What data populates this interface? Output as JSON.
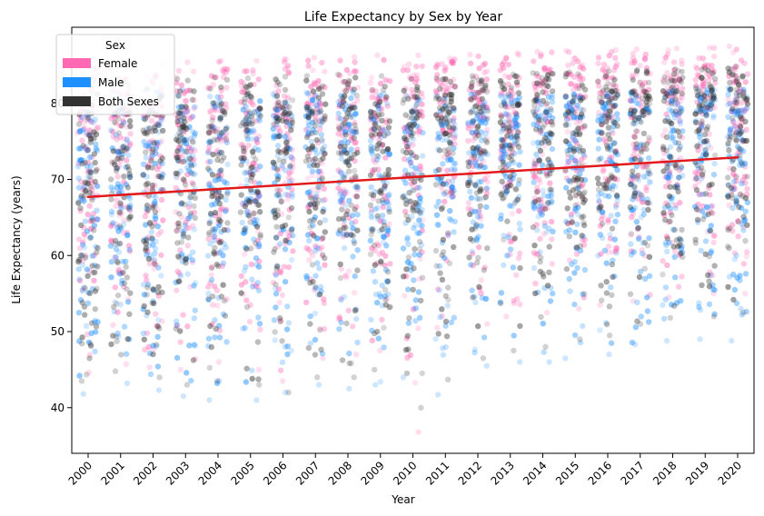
{
  "chart_data": {
    "type": "scatter",
    "title": "Life Expectancy by Sex by Year",
    "xlabel": "Year",
    "ylabel": "Life Expectancy (years)",
    "x": [
      2000,
      2001,
      2002,
      2003,
      2004,
      2005,
      2006,
      2007,
      2008,
      2009,
      2010,
      2011,
      2012,
      2013,
      2014,
      2015,
      2016,
      2017,
      2018,
      2019,
      2020
    ],
    "x_tick_labels": [
      "2000",
      "2001",
      "2002",
      "2003",
      "2004",
      "2005",
      "2006",
      "2007",
      "2008",
      "2009",
      "2010",
      "2011",
      "2012",
      "2013",
      "2014",
      "2015",
      "2016",
      "2017",
      "2018",
      "2019",
      "2020"
    ],
    "y_ticks": [
      40,
      50,
      60,
      70,
      80
    ],
    "y_tick_labels": [
      "40",
      "50",
      "60",
      "70",
      "80"
    ],
    "ylim": [
      34,
      90
    ],
    "grid": false,
    "legend": {
      "title": "Sex",
      "position": "top-left",
      "entries": [
        "Female",
        "Male",
        "Both Sexes"
      ]
    },
    "series": [
      {
        "name": "Female",
        "color": "#ff69b4",
        "min": [
          44.6,
          45.7,
          45.3,
          45.0,
          46.0,
          45.0,
          43.5,
          46.5,
          47.0,
          47.5,
          36.8,
          50.5,
          51.0,
          52.0,
          52.5,
          53.0,
          53.5,
          54.0,
          54.5,
          55.0,
          55.0
        ],
        "q1": [
          63.5,
          64.0,
          64.3,
          64.8,
          65.2,
          65.6,
          66.0,
          66.5,
          66.9,
          67.4,
          67.9,
          68.3,
          68.7,
          69.1,
          69.5,
          69.8,
          70.1,
          70.4,
          70.6,
          70.9,
          70.5
        ],
        "median": [
          72.1,
          72.5,
          72.8,
          73.2,
          73.6,
          74.0,
          74.4,
          74.8,
          75.2,
          75.6,
          76.0,
          76.4,
          76.7,
          77.1,
          77.4,
          77.7,
          78.0,
          78.2,
          78.4,
          78.6,
          78.0
        ],
        "q3": [
          77.8,
          78.1,
          78.4,
          78.7,
          79.0,
          79.3,
          79.6,
          79.9,
          80.2,
          80.5,
          80.8,
          81.1,
          81.4,
          81.7,
          82.0,
          82.3,
          82.5,
          82.7,
          82.9,
          83.1,
          82.8
        ],
        "max": [
          84.6,
          84.9,
          85.1,
          85.4,
          85.6,
          85.6,
          85.8,
          86.0,
          86.1,
          86.3,
          86.3,
          85.9,
          86.4,
          86.6,
          86.8,
          86.9,
          87.0,
          87.1,
          87.2,
          87.3,
          87.5
        ]
      },
      {
        "name": "Male",
        "color": "#1e90ff",
        "min": [
          41.8,
          43.2,
          42.3,
          41.5,
          41.0,
          41.0,
          42.0,
          43.0,
          42.5,
          43.0,
          44.0,
          41.7,
          45.5,
          46.0,
          46.0,
          46.5,
          47.0,
          48.3,
          48.8,
          49.0,
          48.8
        ],
        "q1": [
          58.7,
          59.2,
          59.7,
          60.2,
          60.7,
          61.2,
          61.7,
          62.2,
          62.7,
          63.2,
          63.6,
          64.0,
          64.4,
          64.8,
          65.1,
          65.4,
          65.7,
          66.0,
          66.2,
          66.4,
          65.8
        ],
        "median": [
          67.1,
          67.5,
          67.9,
          68.3,
          68.7,
          69.1,
          69.5,
          69.9,
          70.3,
          70.6,
          71.0,
          71.3,
          71.6,
          71.9,
          72.2,
          72.4,
          72.6,
          72.8,
          73.0,
          73.2,
          72.3
        ],
        "q3": [
          73.8,
          74.1,
          74.4,
          74.7,
          75.0,
          75.3,
          75.6,
          75.9,
          76.2,
          76.5,
          76.8,
          77.1,
          77.4,
          77.7,
          77.9,
          78.1,
          78.3,
          78.5,
          78.7,
          78.9,
          78.2
        ],
        "max": [
          81.3,
          81.5,
          81.6,
          81.8,
          80.9,
          81.0,
          81.2,
          81.4,
          81.6,
          81.3,
          81.0,
          81.0,
          81.2,
          81.0,
          81.1,
          81.2,
          81.3,
          81.5,
          81.7,
          81.9,
          82.0
        ]
      },
      {
        "name": "Both Sexes",
        "color": "#333333",
        "min": [
          43.5,
          44.8,
          44.0,
          43.0,
          43.5,
          43.0,
          42.0,
          44.0,
          44.0,
          45.0,
          40.0,
          43.7,
          46.5,
          47.5,
          48.0,
          49.0,
          49.5,
          51.0,
          51.8,
          52.0,
          52.5
        ],
        "q1": [
          61.0,
          61.5,
          62.0,
          62.5,
          63.0,
          63.4,
          63.8,
          64.3,
          64.8,
          65.2,
          65.7,
          66.1,
          66.5,
          66.9,
          67.3,
          67.6,
          67.9,
          68.2,
          68.4,
          68.6,
          68.0
        ],
        "median": [
          69.6,
          70.0,
          70.4,
          70.8,
          71.2,
          71.6,
          72.0,
          72.4,
          72.8,
          73.1,
          73.5,
          73.8,
          74.1,
          74.5,
          74.8,
          75.0,
          75.3,
          75.5,
          75.7,
          75.9,
          75.1
        ],
        "q3": [
          75.8,
          76.1,
          76.4,
          76.7,
          77.0,
          77.3,
          77.6,
          77.9,
          78.2,
          78.5,
          78.8,
          79.1,
          79.4,
          79.7,
          80.0,
          80.2,
          80.4,
          80.6,
          80.8,
          81.0,
          80.5
        ],
        "max": [
          83.0,
          83.3,
          83.4,
          83.2,
          83.4,
          83.3,
          83.5,
          83.6,
          83.8,
          83.6,
          83.2,
          83.3,
          83.6,
          83.8,
          84.0,
          84.1,
          84.2,
          84.4,
          84.5,
          84.6,
          84.8
        ]
      }
    ],
    "trend_line": {
      "color": "#e31a1c",
      "start": {
        "x": 2000,
        "y": 67.7
      },
      "end": {
        "x": 2020,
        "y": 72.9
      }
    }
  }
}
